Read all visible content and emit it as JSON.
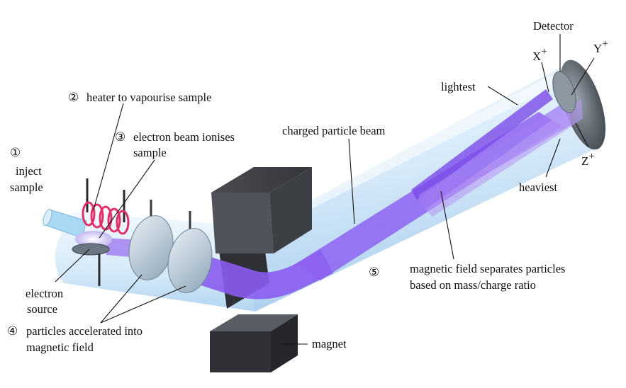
{
  "steps": {
    "s1": {
      "marker": "①",
      "line1": "inject",
      "line2": "sample"
    },
    "s2": {
      "marker": "②",
      "text": "heater to vapourise sample"
    },
    "s3": {
      "marker": "③",
      "line1": "electron beam ionises",
      "line2": "sample"
    },
    "s4": {
      "marker": "④",
      "line1": "particles accelerated into",
      "line2": "magnetic field"
    },
    "s5": {
      "marker": "⑤",
      "line1": "magnetic field separates particles",
      "line2": "based on mass/charge ratio"
    }
  },
  "labels": {
    "electron_source_1": "electron",
    "electron_source_2": "source",
    "charged_beam": "charged particle beam",
    "magnet": "magnet",
    "detector": "Detector",
    "lightest": "lightest",
    "heaviest": "heaviest"
  },
  "ions": {
    "x": {
      "letter": "X",
      "charge": "+"
    },
    "y": {
      "letter": "Y",
      "charge": "+"
    },
    "z": {
      "letter": "Z",
      "charge": "+"
    }
  },
  "colors": {
    "beam": "#8a5cf0",
    "tube": "#cfe6f8",
    "magnet": "#3b3d42",
    "heater": "#e0306a"
  }
}
